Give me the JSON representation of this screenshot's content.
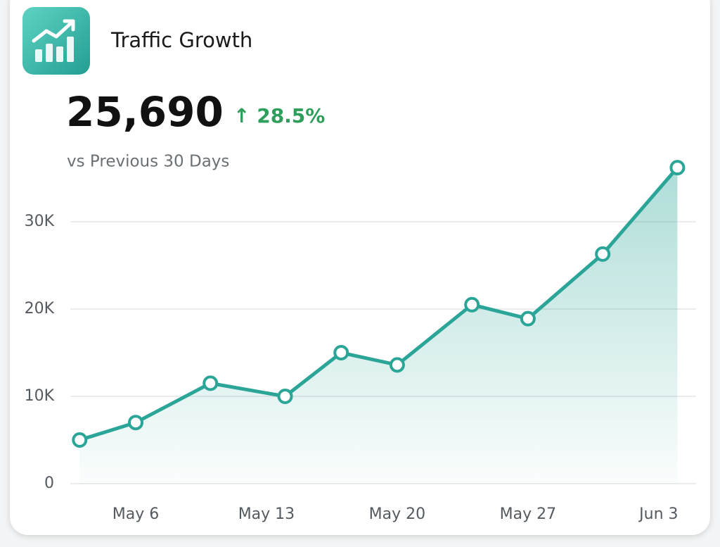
{
  "chart_data": {
    "type": "line",
    "title": "Traffic Growth",
    "value": "25,690",
    "change": "↑ 28.5%",
    "subtitle": "vs Previous 30 Days",
    "x": [
      3,
      6,
      10,
      14,
      17,
      20,
      24,
      27,
      31,
      35
    ],
    "values": [
      5000,
      7000,
      11500,
      10000,
      15000,
      13600,
      20500,
      18900,
      26300,
      36200
    ],
    "color": "#2aa597",
    "xlim": [
      2.5,
      36
    ],
    "xticks": [
      {
        "value": 6,
        "label": "May 6"
      },
      {
        "value": 13,
        "label": "May 13"
      },
      {
        "value": 20,
        "label": "May 20"
      },
      {
        "value": 27,
        "label": "May 27"
      },
      {
        "value": 34,
        "label": "Jun 3"
      }
    ],
    "ylim": [
      0,
      37000
    ],
    "yticks": [
      0,
      {
        "value": 10000,
        "label": "10K"
      },
      {
        "value": 20000,
        "label": "20K"
      },
      {
        "value": 30000,
        "label": "30K"
      }
    ],
    "grid": true
  }
}
